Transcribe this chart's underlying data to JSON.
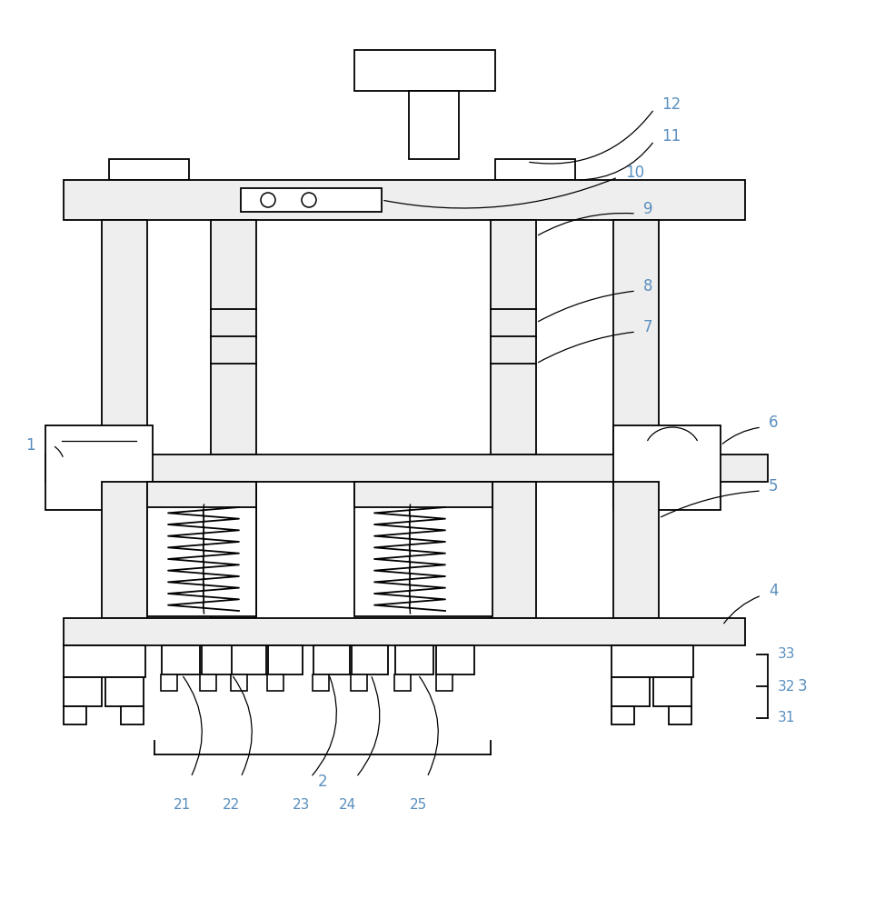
{
  "bg_color": "#ffffff",
  "line_color": "#000000",
  "label_color": "#5a8fc0",
  "fig_width": 9.85,
  "fig_height": 10.0,
  "lw": 1.3
}
